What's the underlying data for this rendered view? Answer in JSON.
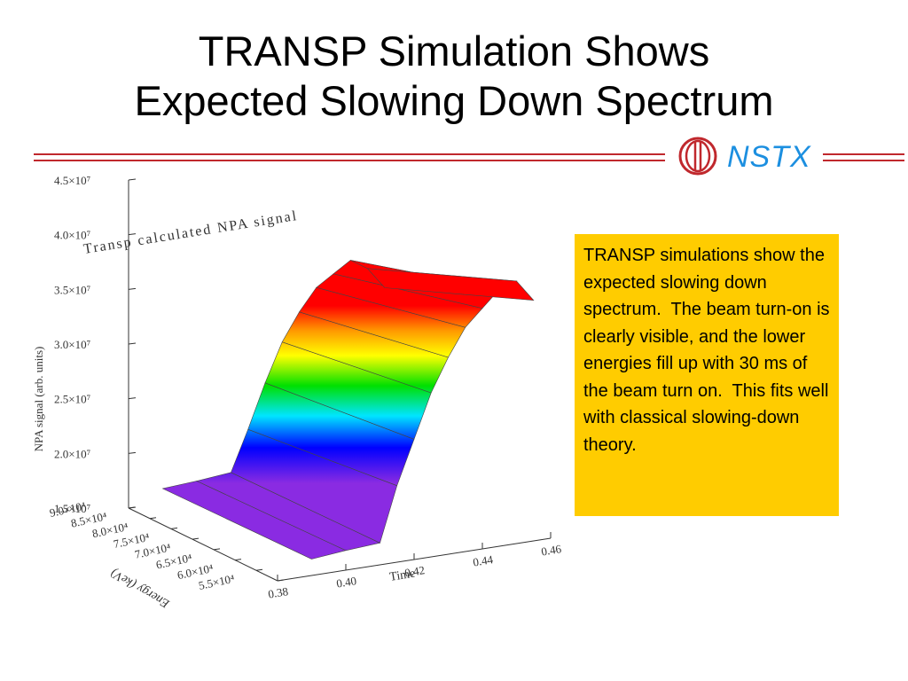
{
  "slide": {
    "title_line1": "TRANSP Simulation Shows",
    "title_line2": "Expected Slowing Down Spectrum",
    "logo_text": "NSTX",
    "body_text": "TRANSP simulations show the expected slowing down spectrum.  The beam turn-on is clearly visible, and the lower energies fill up with 30 ms of the beam turn on.  This fits well with classical slowing-down theory.",
    "colors": {
      "accent_rule": "#c0282d",
      "logo_blue": "#1c8fe0",
      "textbox_bg": "#ffcc00"
    }
  },
  "chart_data": {
    "type": "surface",
    "title": "Transp calculated NPA signal",
    "zlabel": "NPA signal (arb. units)",
    "xlabel": "Time",
    "ylabel": "Energy (keV)",
    "x_ticks": [
      "0.38",
      "0.40",
      "0.42",
      "0.44",
      "0.46"
    ],
    "y_ticks": [
      "5.5×10⁴",
      "6.0×10⁴",
      "6.5×10⁴",
      "7.0×10⁴",
      "7.5×10⁴",
      "8.0×10⁴",
      "8.5×10⁴",
      "9.0×10⁴"
    ],
    "z_ticks": [
      "1.5×10⁷",
      "2.0×10⁷",
      "2.5×10⁷",
      "3.0×10⁷",
      "3.5×10⁷",
      "4.0×10⁷",
      "4.5×10⁷"
    ],
    "x_range": [
      0.38,
      0.46
    ],
    "y_range": [
      55000,
      90000
    ],
    "z_range": [
      15000000,
      45000000
    ],
    "time": [
      0.39,
      0.4,
      0.41,
      0.415,
      0.42,
      0.425,
      0.43,
      0.435,
      0.44,
      0.445,
      0.45,
      0.455
    ],
    "energy": [
      55000,
      90000
    ],
    "signal": [
      [
        16500000,
        16300000
      ],
      [
        16800000,
        16500000
      ],
      [
        17000000,
        16800000
      ],
      [
        22000000,
        20500000
      ],
      [
        26000000,
        24500000
      ],
      [
        30000000,
        28000000
      ],
      [
        33000000,
        30500000
      ],
      [
        35500000,
        32500000
      ],
      [
        37000000,
        33500000
      ],
      [
        38500000,
        34500000
      ],
      [
        39000000,
        33500000
      ],
      [
        37000000,
        31500000
      ]
    ]
  }
}
